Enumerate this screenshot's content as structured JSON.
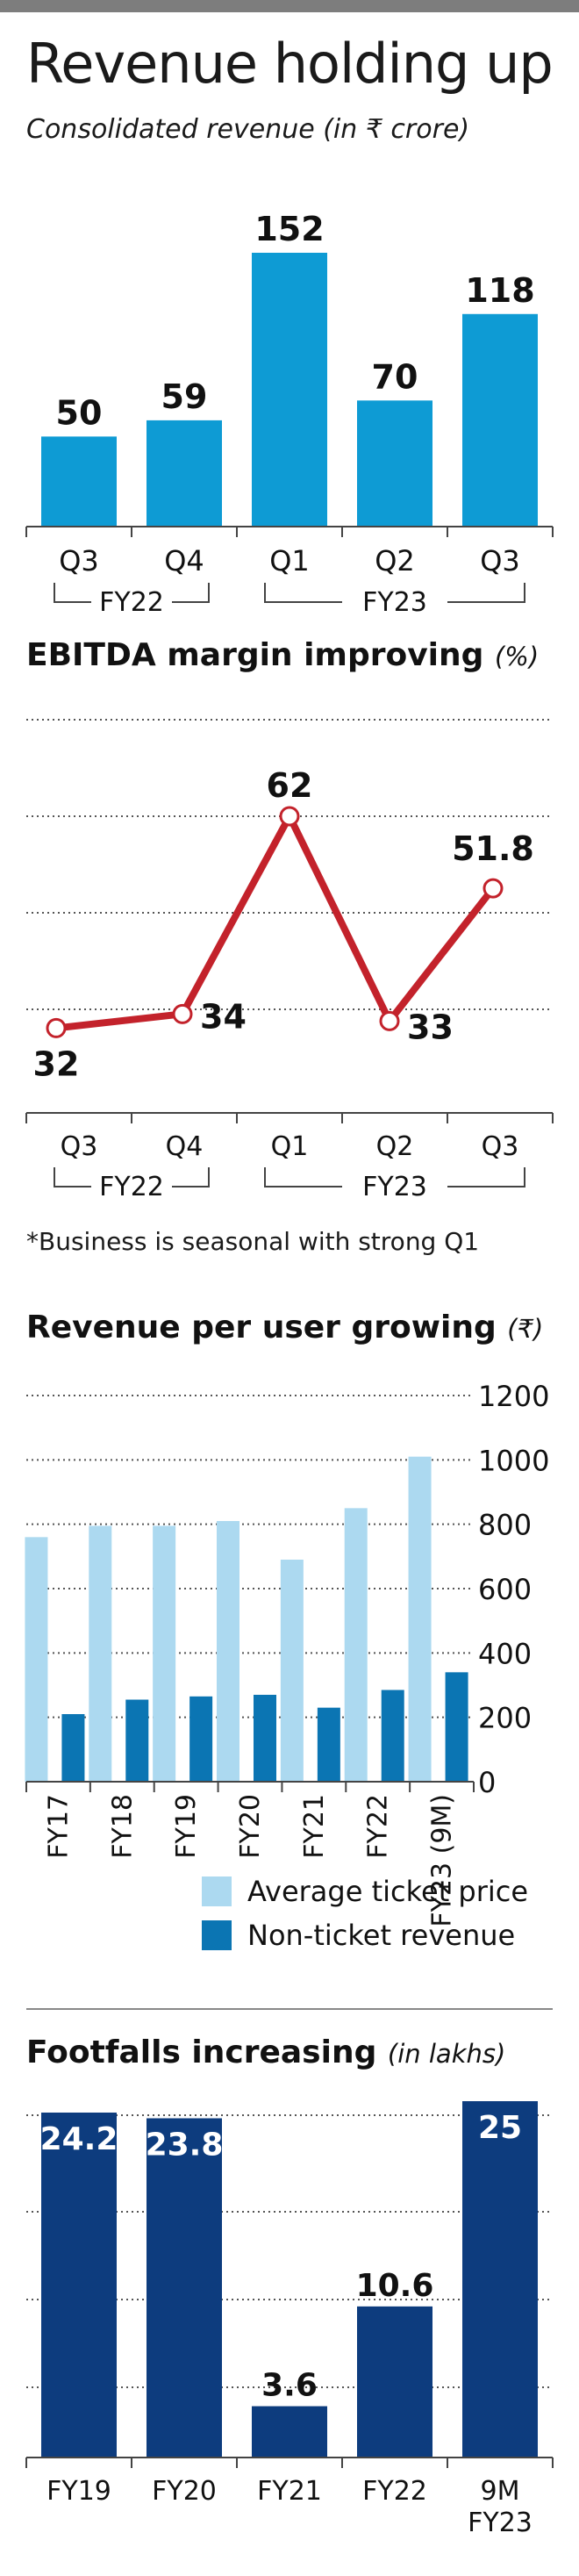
{
  "header": {
    "title": "Revenue holding up"
  },
  "chart_data": [
    {
      "type": "bar",
      "subtitle": "Consolidated revenue (in ₹ crore)",
      "categories": [
        "Q3",
        "Q4",
        "Q1",
        "Q2",
        "Q3"
      ],
      "groups": [
        "FY22",
        "FY23"
      ],
      "values": [
        50,
        59,
        152,
        70,
        118
      ],
      "value_labels": [
        "50",
        "59",
        "152",
        "70",
        "118"
      ],
      "ylim": [
        0,
        152
      ],
      "color": "#0e9bd4"
    },
    {
      "type": "line",
      "title": "EBITDA margin improving",
      "unit": "(%)",
      "categories": [
        "Q3",
        "Q4",
        "Q1",
        "Q2",
        "Q3"
      ],
      "groups": [
        "FY22",
        "FY23"
      ],
      "values": [
        32,
        34,
        62,
        33,
        51.8
      ],
      "value_labels": [
        "32",
        "34",
        "62",
        "33",
        "51.8"
      ],
      "ylim": [
        20,
        62
      ],
      "color": "#c3222b",
      "note": "*Business is seasonal with strong Q1"
    },
    {
      "type": "bar",
      "title": "Revenue per user growing",
      "unit": "(₹)",
      "categories": [
        "FY17",
        "FY18",
        "FY19",
        "FY20",
        "FY21",
        "FY22",
        "FY23 (9M)"
      ],
      "series": [
        {
          "name": "Average ticket price",
          "values": [
            760,
            795,
            795,
            810,
            690,
            850,
            1010
          ],
          "color": "#acd9f0"
        },
        {
          "name": "Non-ticket revenue",
          "values": [
            210,
            255,
            265,
            270,
            230,
            285,
            340
          ],
          "color": "#0b75b3"
        }
      ],
      "ylim": [
        0,
        1200
      ],
      "yticks": [
        "0",
        "200",
        "400",
        "600",
        "800",
        "1000",
        "1200"
      ],
      "grid": true,
      "legend": "bottom"
    },
    {
      "type": "bar",
      "title": "Footfalls increasing",
      "unit": "(in lakhs)",
      "categories": [
        "FY19",
        "FY20",
        "FY21",
        "FY22",
        "9M FY23"
      ],
      "values": [
        24.2,
        23.8,
        3.6,
        10.6,
        25
      ],
      "value_labels": [
        "24.2",
        "23.8",
        "3.6",
        "10.6",
        "25"
      ],
      "ylim": [
        0,
        25
      ],
      "grid": true,
      "color": "#0d3c7e"
    }
  ]
}
